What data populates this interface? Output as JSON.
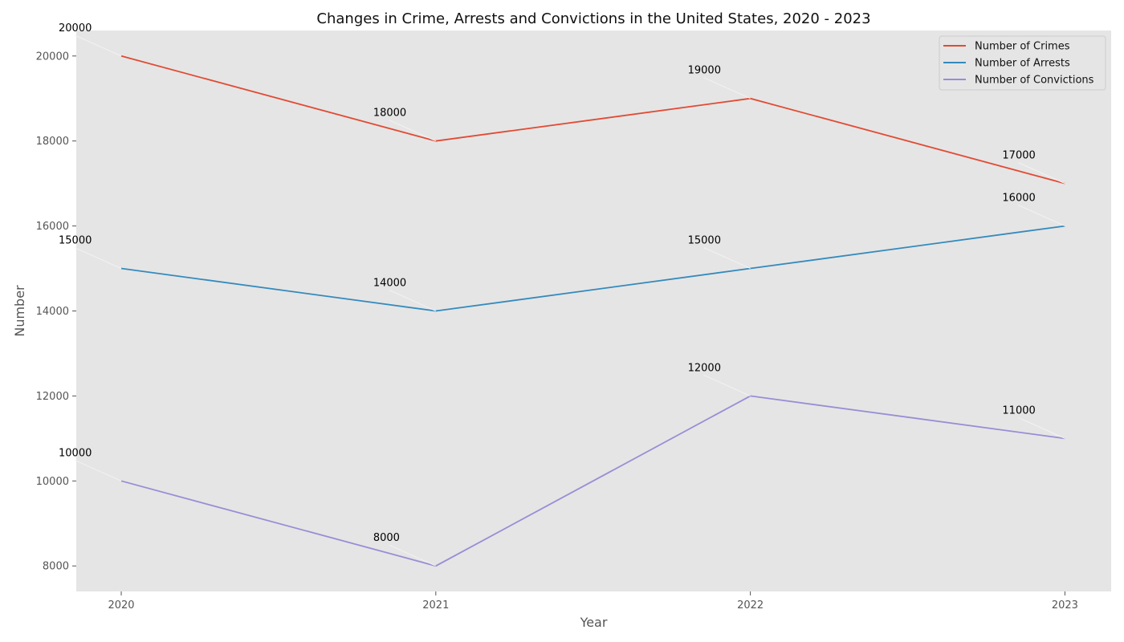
{
  "chart_data": {
    "type": "line",
    "title": "Changes in Crime, Arrests and Convictions in the United States, 2020 - 2023",
    "xlabel": "Year",
    "ylabel": "Number",
    "x": [
      2020,
      2021,
      2022,
      2023
    ],
    "x_tick_labels": [
      "2020",
      "2021",
      "2022",
      "2023"
    ],
    "xlim": [
      2019.857,
      2023.147
    ],
    "ylim": [
      7400,
      20600
    ],
    "y_ticks": [
      8000,
      10000,
      12000,
      14000,
      16000,
      18000,
      20000
    ],
    "y_tick_labels": [
      "8000",
      "10000",
      "12000",
      "14000",
      "16000",
      "18000",
      "20000"
    ],
    "grid": false,
    "legend_position": "top-right",
    "series": [
      {
        "name": "Number of Crimes",
        "color": "#E24A33",
        "values": [
          20000,
          18000,
          19000,
          17000
        ],
        "labels": [
          "20000",
          "18000",
          "19000",
          "17000"
        ]
      },
      {
        "name": "Number of Arrests",
        "color": "#348ABD",
        "values": [
          15000,
          14000,
          15000,
          16000
        ],
        "labels": [
          "15000",
          "14000",
          "15000",
          "16000"
        ]
      },
      {
        "name": "Number of Convictions",
        "color": "#988ED5",
        "values": [
          10000,
          8000,
          12000,
          11000
        ],
        "labels": [
          "10000",
          "8000",
          "12000",
          "11000"
        ]
      }
    ],
    "colors": {
      "plot_background": "#E5E5E5",
      "page_background": "#FFFFFF"
    }
  }
}
